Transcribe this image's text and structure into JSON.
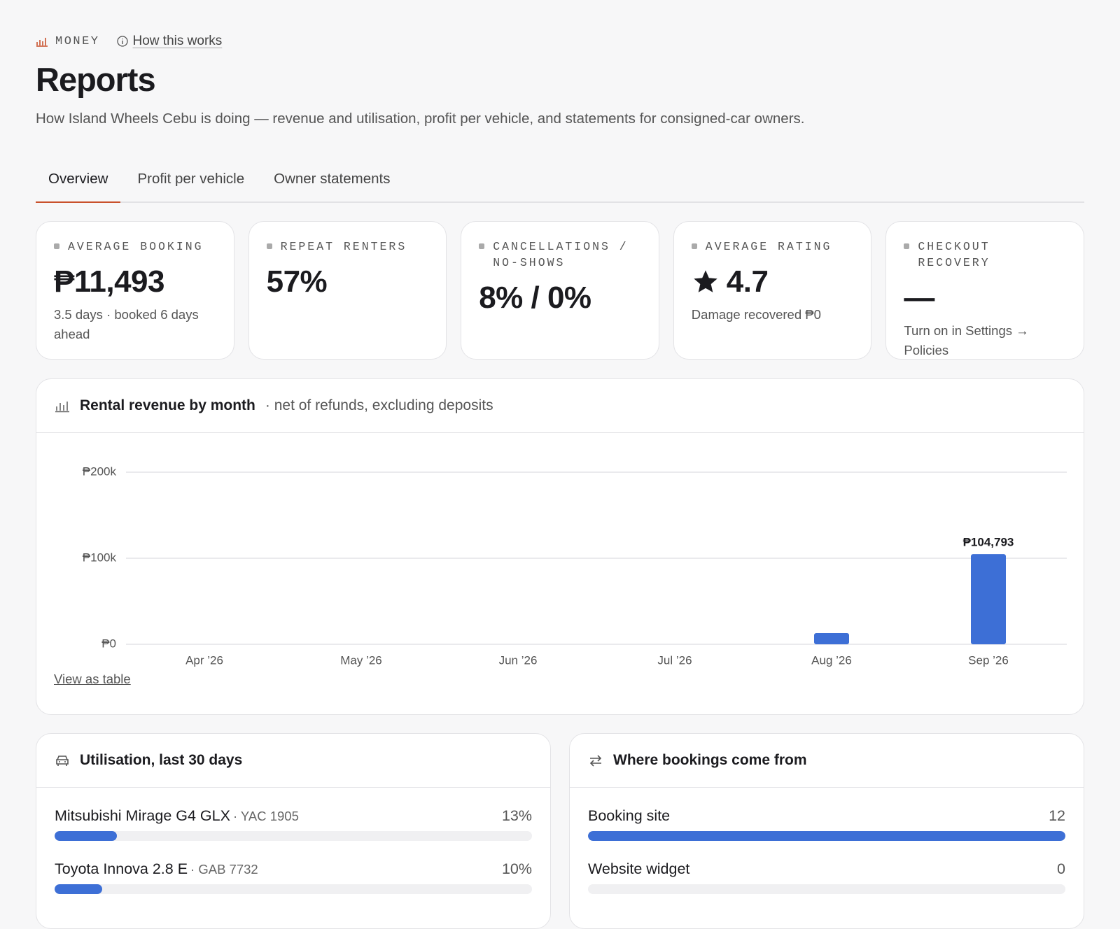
{
  "header": {
    "eyebrow": "MONEY",
    "help": "How this works",
    "title": "Reports",
    "subtitle": "How Island Wheels Cebu is doing — revenue and utilisation, profit per vehicle, and statements for consigned-car owners."
  },
  "tabs": [
    "Overview",
    "Profit per vehicle",
    "Owner statements"
  ],
  "kpis": [
    {
      "label": "AVERAGE BOOKING",
      "value": "₱11,493",
      "note": "3.5 days · booked 6 days ahead"
    },
    {
      "label": "REPEAT RENTERS",
      "value": "57%"
    },
    {
      "label": "CANCELLATIONS / NO-SHOWS",
      "value": "8% / 0%"
    },
    {
      "label": "AVERAGE RATING",
      "value": "4.7",
      "icon": "star",
      "note": "Damage recovered ₱0"
    },
    {
      "label": "CHECKOUT RECOVERY",
      "value": "—",
      "note": "Turn on in Settings → Policies"
    }
  ],
  "chart_data": {
    "type": "bar",
    "title": "Rental revenue by month",
    "subtitle": "· net of refunds, excluding deposits",
    "categories": [
      "Apr ’26",
      "May ’26",
      "Jun ’26",
      "Jul ’26",
      "Aug ’26",
      "Sep ’26"
    ],
    "values": [
      0,
      0,
      0,
      0,
      13000,
      104793
    ],
    "value_labels": [
      null,
      null,
      null,
      null,
      null,
      "₱104,793"
    ],
    "color": "#3d6fd6",
    "ylim": [
      0,
      200000
    ],
    "yticks": [
      {
        "value": 0,
        "label": "₱0"
      },
      {
        "value": 100000,
        "label": "₱100k"
      },
      {
        "value": 200000,
        "label": "₱200k"
      }
    ],
    "grid": true,
    "link": "View as table"
  },
  "utilisation": {
    "title": "Utilisation, last 30 days",
    "rows": [
      {
        "name": "Mitsubishi Mirage G4 GLX",
        "plate": "· YAC 1905",
        "percent": 13,
        "percent_label": "13%"
      },
      {
        "name": "Toyota Innova 2.8 E",
        "plate": "· GAB 7732",
        "percent": 10,
        "percent_label": "10%"
      }
    ]
  },
  "sources": {
    "title": "Where bookings come from",
    "rows": [
      {
        "name": "Booking site",
        "count": 12
      },
      {
        "name": "Website widget",
        "count": 0
      }
    ]
  }
}
